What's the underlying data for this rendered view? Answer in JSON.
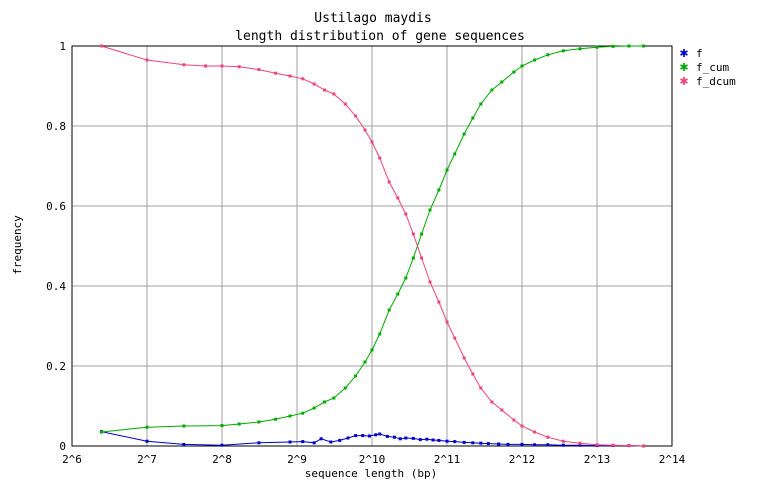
{
  "chart_data": {
    "type": "line",
    "title": "Ustilago maydis",
    "subtitle": "length distribution of gene sequences",
    "xlabel": "sequence length (bp)",
    "ylabel": "frequency",
    "x_scale": "log2",
    "xlim": [
      64,
      16384
    ],
    "ylim": [
      0,
      1
    ],
    "grid": true,
    "legend_position": "right",
    "x_tick_labels": [
      "2^6",
      "2^7",
      "2^8",
      "2^9",
      "2^10",
      "2^11",
      "2^12",
      "2^13",
      "2^14"
    ],
    "y_tick_labels": [
      "0",
      "0.2",
      "0.4",
      "0.6",
      "0.8",
      "1"
    ],
    "series": [
      {
        "name": "f",
        "color": "#0000cc",
        "points": [
          [
            84,
            0.036
          ],
          [
            128,
            0.012
          ],
          [
            180,
            0.004
          ],
          [
            256,
            0.002
          ],
          [
            360,
            0.008
          ],
          [
            480,
            0.01
          ],
          [
            540,
            0.011
          ],
          [
            600,
            0.008
          ],
          [
            640,
            0.018
          ],
          [
            700,
            0.01
          ],
          [
            760,
            0.014
          ],
          [
            820,
            0.02
          ],
          [
            880,
            0.026
          ],
          [
            940,
            0.026
          ],
          [
            1000,
            0.025
          ],
          [
            1060,
            0.028
          ],
          [
            1100,
            0.03
          ],
          [
            1180,
            0.024
          ],
          [
            1260,
            0.022
          ],
          [
            1330,
            0.018
          ],
          [
            1400,
            0.02
          ],
          [
            1500,
            0.019
          ],
          [
            1600,
            0.016
          ],
          [
            1700,
            0.017
          ],
          [
            1800,
            0.015
          ],
          [
            1900,
            0.014
          ],
          [
            2048,
            0.012
          ],
          [
            2200,
            0.011
          ],
          [
            2400,
            0.009
          ],
          [
            2600,
            0.008
          ],
          [
            2800,
            0.007
          ],
          [
            3000,
            0.006
          ],
          [
            3300,
            0.005
          ],
          [
            3600,
            0.004
          ],
          [
            4096,
            0.004
          ],
          [
            4600,
            0.003
          ],
          [
            5200,
            0.003
          ],
          [
            6000,
            0.002
          ],
          [
            7000,
            0.002
          ],
          [
            8192,
            0.001
          ],
          [
            9500,
            0.001
          ],
          [
            11000,
            0.001
          ],
          [
            12600,
            0.0
          ]
        ]
      },
      {
        "name": "f_cum",
        "color": "#00aa00",
        "points": [
          [
            84,
            0.035
          ],
          [
            128,
            0.047
          ],
          [
            180,
            0.05
          ],
          [
            256,
            0.051
          ],
          [
            300,
            0.055
          ],
          [
            360,
            0.06
          ],
          [
            420,
            0.067
          ],
          [
            480,
            0.075
          ],
          [
            540,
            0.082
          ],
          [
            600,
            0.095
          ],
          [
            660,
            0.11
          ],
          [
            720,
            0.12
          ],
          [
            800,
            0.145
          ],
          [
            880,
            0.175
          ],
          [
            960,
            0.21
          ],
          [
            1024,
            0.24
          ],
          [
            1100,
            0.28
          ],
          [
            1200,
            0.34
          ],
          [
            1300,
            0.38
          ],
          [
            1400,
            0.42
          ],
          [
            1500,
            0.47
          ],
          [
            1620,
            0.53
          ],
          [
            1750,
            0.59
          ],
          [
            1900,
            0.64
          ],
          [
            2048,
            0.69
          ],
          [
            2200,
            0.73
          ],
          [
            2400,
            0.78
          ],
          [
            2600,
            0.82
          ],
          [
            2800,
            0.855
          ],
          [
            3100,
            0.89
          ],
          [
            3400,
            0.91
          ],
          [
            3800,
            0.935
          ],
          [
            4096,
            0.95
          ],
          [
            4600,
            0.965
          ],
          [
            5200,
            0.978
          ],
          [
            6000,
            0.988
          ],
          [
            7000,
            0.993
          ],
          [
            8192,
            0.997
          ],
          [
            9500,
            0.999
          ],
          [
            11000,
            1.0
          ],
          [
            12600,
            1.0
          ]
        ]
      },
      {
        "name": "f_dcum",
        "color": "#ee4477",
        "points": [
          [
            84,
            1.0
          ],
          [
            128,
            0.965
          ],
          [
            180,
            0.953
          ],
          [
            220,
            0.95
          ],
          [
            256,
            0.95
          ],
          [
            300,
            0.948
          ],
          [
            360,
            0.941
          ],
          [
            420,
            0.932
          ],
          [
            480,
            0.925
          ],
          [
            540,
            0.918
          ],
          [
            600,
            0.905
          ],
          [
            660,
            0.89
          ],
          [
            720,
            0.88
          ],
          [
            800,
            0.855
          ],
          [
            880,
            0.825
          ],
          [
            960,
            0.79
          ],
          [
            1024,
            0.76
          ],
          [
            1100,
            0.72
          ],
          [
            1200,
            0.66
          ],
          [
            1300,
            0.62
          ],
          [
            1400,
            0.58
          ],
          [
            1500,
            0.53
          ],
          [
            1620,
            0.47
          ],
          [
            1750,
            0.41
          ],
          [
            1900,
            0.36
          ],
          [
            2048,
            0.31
          ],
          [
            2200,
            0.27
          ],
          [
            2400,
            0.22
          ],
          [
            2600,
            0.18
          ],
          [
            2800,
            0.145
          ],
          [
            3100,
            0.11
          ],
          [
            3400,
            0.09
          ],
          [
            3800,
            0.065
          ],
          [
            4096,
            0.05
          ],
          [
            4600,
            0.035
          ],
          [
            5200,
            0.022
          ],
          [
            6000,
            0.012
          ],
          [
            7000,
            0.007
          ],
          [
            8192,
            0.003
          ],
          [
            9500,
            0.002
          ],
          [
            11000,
            0.001
          ],
          [
            12600,
            0.0
          ]
        ]
      }
    ]
  }
}
